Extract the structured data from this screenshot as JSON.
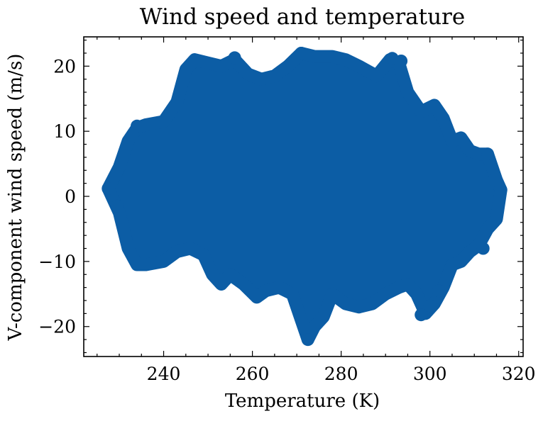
{
  "chart_data": {
    "type": "scatter",
    "title": "Wind speed and temperature",
    "xlabel": "Temperature (K)",
    "ylabel": "V-component wind speed (m/s)",
    "xlim": [
      222,
      321
    ],
    "ylim": [
      -24.6,
      24.5
    ],
    "xticks": [
      240,
      260,
      280,
      300,
      320
    ],
    "xtick_labels": [
      "240",
      "260",
      "280",
      "300",
      "320"
    ],
    "yticks": [
      -20,
      -10,
      0,
      10,
      20
    ],
    "ytick_labels": [
      "−20",
      "−10",
      "0",
      "10",
      "20"
    ],
    "x_minor_step": 5,
    "y_minor_step": 2,
    "grid": false,
    "ticks_direction": "in",
    "ticks_on_all_sides": true,
    "marker_color": "#0C5DA5",
    "envelope": {
      "upper": [
        [
          227.5,
          1.2
        ],
        [
          230,
          4.5
        ],
        [
          232,
          8.5
        ],
        [
          234,
          10.5
        ],
        [
          236,
          11.0
        ],
        [
          240,
          11.5
        ],
        [
          243,
          14.5
        ],
        [
          245,
          19.5
        ],
        [
          247,
          21.0
        ],
        [
          250,
          20.5
        ],
        [
          253,
          20.0
        ],
        [
          256,
          21.0
        ],
        [
          259,
          18.8
        ],
        [
          262,
          18.0
        ],
        [
          265,
          18.5
        ],
        [
          268,
          20.0
        ],
        [
          271,
          22.0
        ],
        [
          274,
          21.5
        ],
        [
          278,
          21.5
        ],
        [
          281,
          21.0
        ],
        [
          284,
          20.0
        ],
        [
          288,
          18.5
        ],
        [
          291,
          21.0
        ],
        [
          293,
          20.5
        ],
        [
          295,
          16.0
        ],
        [
          298,
          13.0
        ],
        [
          301,
          14.0
        ],
        [
          303,
          12.0
        ],
        [
          305,
          8.5
        ],
        [
          307,
          9.0
        ],
        [
          309,
          7.0
        ],
        [
          311,
          6.5
        ],
        [
          313,
          6.5
        ],
        [
          315,
          2.5
        ],
        [
          316,
          1.0
        ]
      ],
      "lower": [
        [
          316,
          1.0
        ],
        [
          315,
          -3.5
        ],
        [
          313,
          -5.0
        ],
        [
          311,
          -7.5
        ],
        [
          309,
          -8.5
        ],
        [
          307,
          -10.0
        ],
        [
          305,
          -10.5
        ],
        [
          303,
          -14.0
        ],
        [
          301,
          -16.5
        ],
        [
          299,
          -18.0
        ],
        [
          297,
          -15.0
        ],
        [
          295,
          -13.5
        ],
        [
          293,
          -14.0
        ],
        [
          290,
          -15.0
        ],
        [
          287,
          -16.5
        ],
        [
          284,
          -17.0
        ],
        [
          281,
          -16.5
        ],
        [
          278,
          -15.0
        ],
        [
          276,
          -18.5
        ],
        [
          274,
          -20.0
        ],
        [
          272.5,
          -22.0
        ],
        [
          271,
          -19.0
        ],
        [
          269,
          -15.0
        ],
        [
          266,
          -14.0
        ],
        [
          263,
          -14.5
        ],
        [
          261,
          -15.5
        ],
        [
          258,
          -13.5
        ],
        [
          255,
          -12.0
        ],
        [
          253,
          -13.5
        ],
        [
          251,
          -12.0
        ],
        [
          249,
          -9.0
        ],
        [
          246,
          -8.0
        ],
        [
          243,
          -8.5
        ],
        [
          240,
          -10.0
        ],
        [
          236,
          -10.5
        ],
        [
          234,
          -10.5
        ],
        [
          232,
          -8.0
        ],
        [
          230,
          -2.5
        ],
        [
          227.5,
          1.2
        ]
      ]
    },
    "outlier_points": [
      [
        227.5,
        1.2
      ],
      [
        229.5,
        -1.5
      ],
      [
        233,
        9.2
      ],
      [
        234,
        10.8
      ],
      [
        256,
        21.3
      ],
      [
        271,
        22.0
      ],
      [
        272.5,
        -22.0
      ],
      [
        291.5,
        21.2
      ],
      [
        293.5,
        20.8
      ],
      [
        298,
        -18.2
      ],
      [
        300,
        -16.8
      ],
      [
        302,
        -14.5
      ],
      [
        313,
        6.5
      ],
      [
        314.5,
        2.5
      ],
      [
        316,
        1.0
      ],
      [
        312,
        -8.0
      ]
    ]
  }
}
